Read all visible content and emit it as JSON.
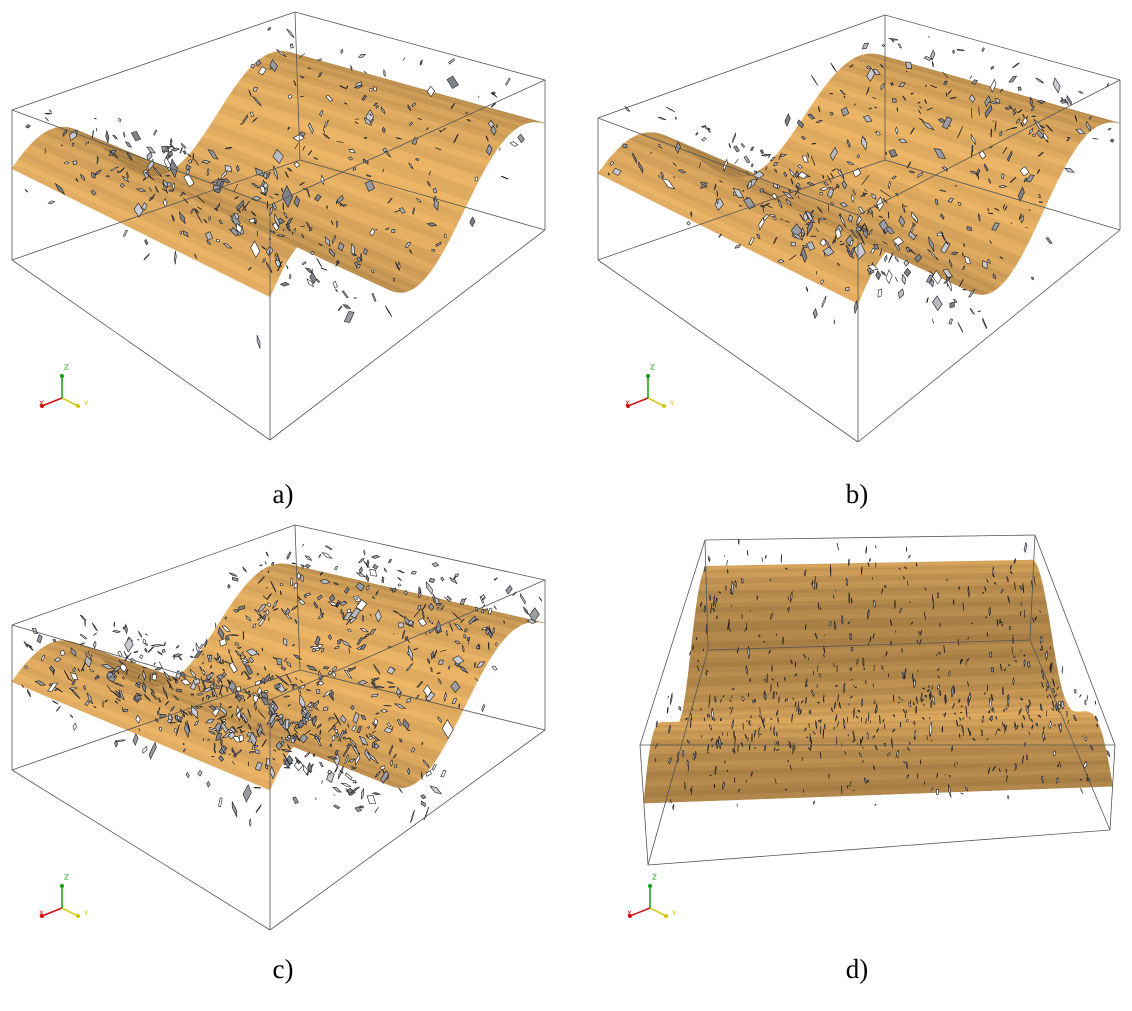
{
  "panels": [
    {
      "caption": "a)",
      "axis_labels": [
        "X",
        "Y",
        "Z"
      ]
    },
    {
      "caption": "b)",
      "axis_labels": [
        "X",
        "Y",
        "Z"
      ]
    },
    {
      "caption": "c)",
      "axis_labels": [
        "X",
        "Y",
        "Z"
      ]
    },
    {
      "caption": "d)",
      "axis_labels": [
        "X",
        "Y",
        "Z"
      ]
    }
  ]
}
